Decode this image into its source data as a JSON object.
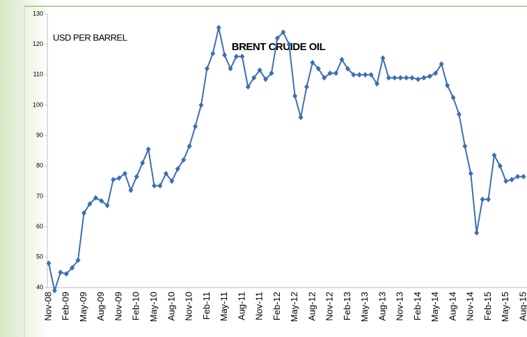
{
  "chart_data": {
    "type": "line",
    "title": "BRENT CRUIDE OIL",
    "annotation": "USD PER BARREL",
    "categories": [
      "Nov-08",
      null,
      null,
      "Feb-09",
      null,
      null,
      "May-09",
      null,
      null,
      "Aug-09",
      null,
      null,
      "Nov-09",
      null,
      null,
      "Feb-10",
      null,
      null,
      "May-10",
      null,
      null,
      "Aug-10",
      null,
      null,
      "Nov-10",
      null,
      null,
      "Feb-11",
      null,
      null,
      "May-11",
      null,
      null,
      "Aug-11",
      null,
      null,
      "Nov-11",
      null,
      null,
      "Feb-12",
      null,
      null,
      "May-12",
      null,
      null,
      "Aug-12",
      null,
      null,
      "Nov-12",
      null,
      null,
      "Feb-13",
      null,
      null,
      "May-13",
      null,
      null,
      "Aug-13",
      null,
      null,
      "Nov-13",
      null,
      null,
      "Feb-14",
      null,
      null,
      "May-14",
      null,
      null,
      "Aug-14",
      null,
      null,
      "Nov-14",
      null,
      null,
      "Feb-15",
      null,
      null,
      "May-15",
      null,
      null,
      "Aug-15"
    ],
    "series": [
      {
        "name": "Brent",
        "color": "#3b6eb4",
        "values": [
          48,
          39,
          45,
          44.5,
          46.5,
          49,
          64.5,
          67.5,
          69.5,
          68.5,
          67,
          75.5,
          76,
          77.5,
          72,
          76.5,
          81,
          85.5,
          73.5,
          73.5,
          77.5,
          75,
          79,
          82,
          86.5,
          93,
          100,
          112,
          117,
          125.5,
          116.5,
          112,
          116,
          116,
          106,
          109,
          111.5,
          108.5,
          110.5,
          122,
          124,
          120,
          103,
          96,
          106,
          114,
          112,
          109,
          110.5,
          110.5,
          115,
          112,
          110,
          110,
          110,
          110,
          107,
          115.5,
          109,
          109,
          109,
          109,
          109,
          108.5,
          109,
          109.5,
          110.5,
          113.5,
          106.5,
          102.5,
          97,
          86.5,
          77.5,
          58,
          69,
          69,
          83.5,
          80,
          75,
          75.5,
          76.5,
          76.5
        ]
      }
    ],
    "ylim": [
      40,
      130
    ],
    "yticks": [
      40,
      50,
      60,
      70,
      80,
      90,
      100,
      110,
      120,
      130
    ]
  }
}
